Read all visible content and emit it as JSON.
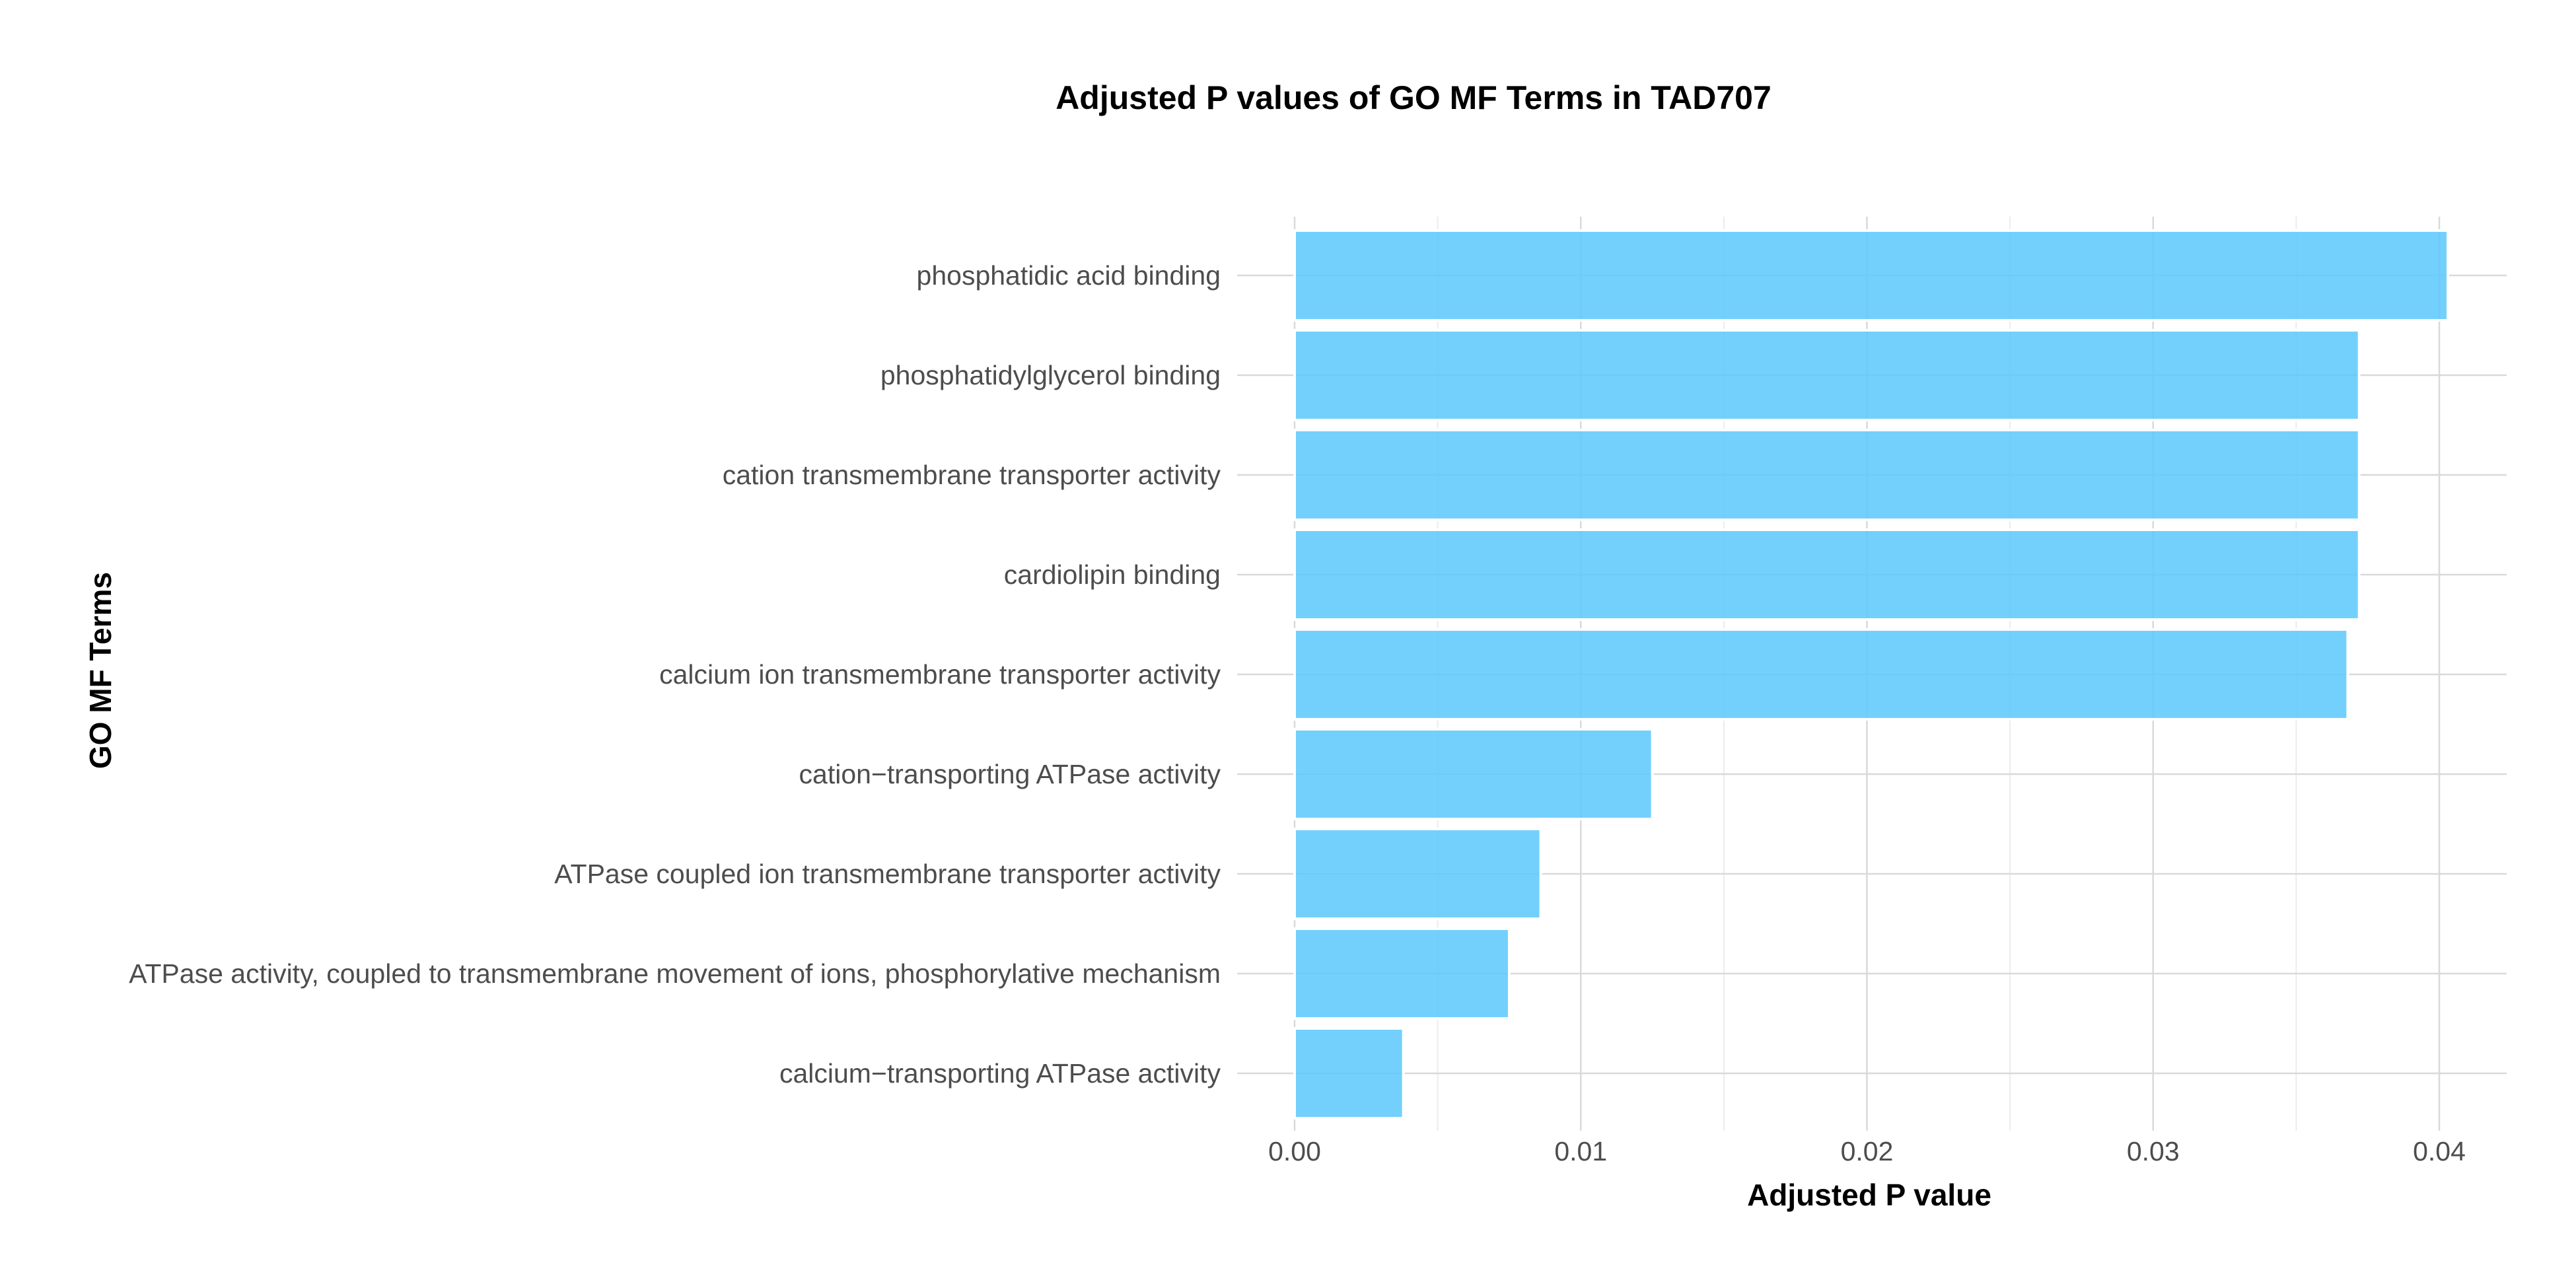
{
  "chart_data": {
    "type": "bar",
    "orientation": "horizontal",
    "title": "Adjusted P values of GO MF Terms in TAD707",
    "xlabel": "Adjusted P value",
    "ylabel": "GO MF Terms",
    "categories": [
      "phosphatidic acid binding",
      "phosphatidylglycerol binding",
      "cation transmembrane transporter activity",
      "cardiolipin binding",
      "calcium ion transmembrane transporter activity",
      "cation−transporting ATPase activity",
      "ATPase coupled ion transmembrane transporter activity",
      "ATPase activity, coupled to transmembrane movement of ions, phosphorylative mechanism",
      "calcium−transporting ATPase activity"
    ],
    "values": [
      0.0403,
      0.0372,
      0.0372,
      0.0372,
      0.0368,
      0.0125,
      0.0086,
      0.0075,
      0.0038
    ],
    "xticks": [
      "0.00",
      "0.01",
      "0.02",
      "0.03",
      "0.04"
    ],
    "xtick_values": [
      0,
      0.01,
      0.02,
      0.03,
      0.04
    ],
    "xlim": [
      0,
      0.0423
    ],
    "grid": true,
    "bar_color": "#5bc8fb"
  }
}
